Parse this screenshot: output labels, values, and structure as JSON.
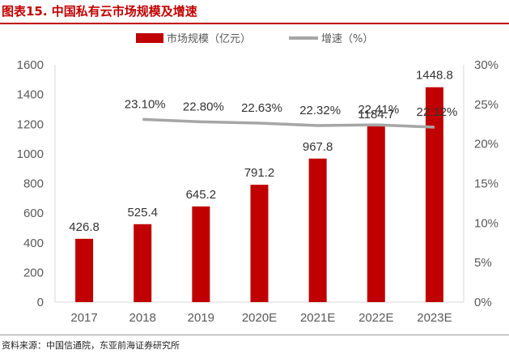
{
  "header": {
    "title": "图表15. 中国私有云市场规模及增速"
  },
  "footer": {
    "source": "资料来源：中国信通院，东亚前海证券研究所"
  },
  "colors": {
    "bar": "#c00000",
    "line": "#a6a6a6",
    "accent": "#c00000"
  },
  "chart_data": {
    "type": "bar",
    "categories": [
      "2017",
      "2018",
      "2019",
      "2020E",
      "2021E",
      "2022E",
      "2023E"
    ],
    "series": [
      {
        "name": "市场规模（亿元）",
        "type": "bar",
        "axis": "left",
        "values": [
          426.8,
          525.4,
          645.2,
          791.2,
          967.8,
          1184.7,
          1448.8
        ],
        "labels": [
          "426.8",
          "525.4",
          "645.2",
          "791.2",
          "967.8",
          "1184.7",
          "1448.8"
        ]
      },
      {
        "name": "增速（%）",
        "type": "line",
        "axis": "right",
        "values": [
          null,
          23.1,
          22.8,
          22.63,
          22.32,
          22.41,
          22.12
        ],
        "labels": [
          "",
          "23.10%",
          "22.80%",
          "22.63%",
          "22.32%",
          "22.41%",
          "22.12%"
        ]
      }
    ],
    "y_left": {
      "ylim": [
        0,
        1600
      ],
      "ticks": [
        "0",
        "200",
        "400",
        "600",
        "800",
        "1000",
        "1200",
        "1400",
        "1600"
      ]
    },
    "y_right": {
      "ylim": [
        0,
        30
      ],
      "ticks": [
        "0%",
        "5%",
        "10%",
        "15%",
        "20%",
        "25%",
        "30%"
      ]
    },
    "legend_position": "top-center",
    "grid": false
  }
}
